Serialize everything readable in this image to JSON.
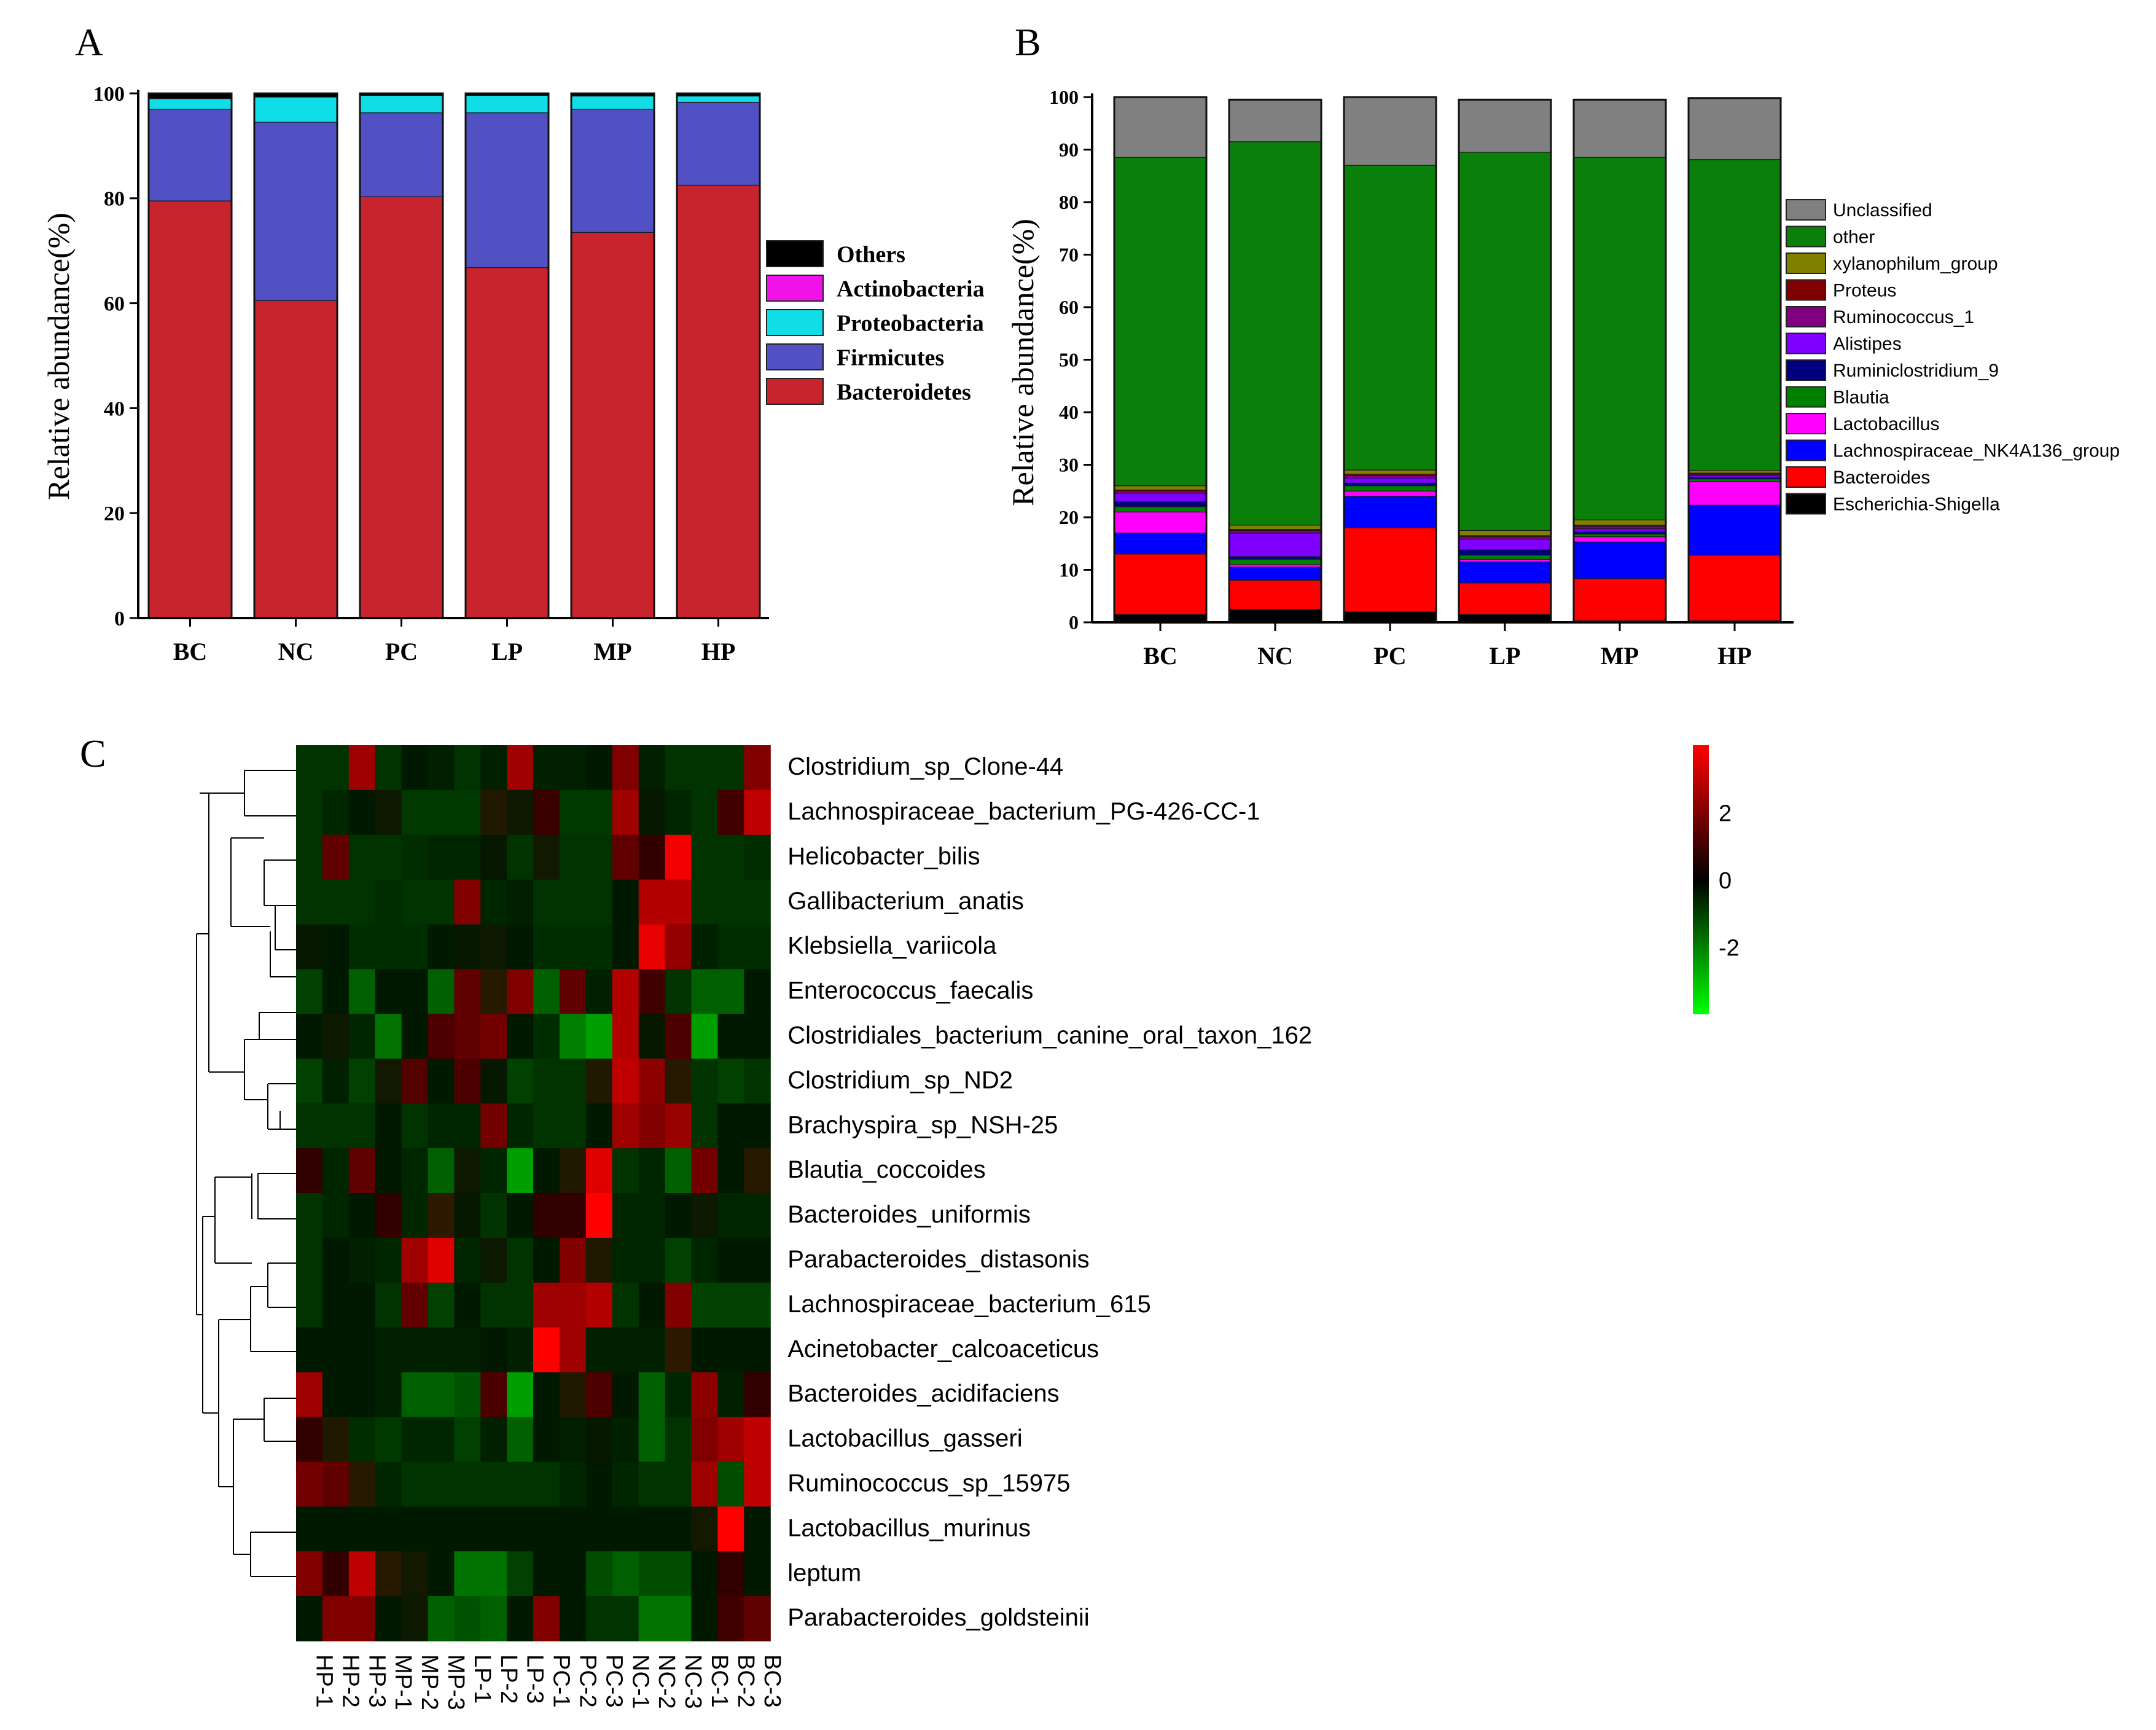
{
  "panels": {
    "a": "A",
    "b": "B",
    "c": "C"
  },
  "chart_data": [
    {
      "panel": "A",
      "type": "bar",
      "stacked": true,
      "title": "",
      "xlabel": "",
      "ylabel": "Relative abundance(%)",
      "ylim": [
        0,
        100
      ],
      "yticks": [
        "0",
        "20",
        "40",
        "60",
        "80",
        "100"
      ],
      "categories": [
        "BC",
        "NC",
        "PC",
        "LP",
        "MP",
        "HP"
      ],
      "legend_position": "right",
      "series": [
        {
          "name": "Bacteroidetes",
          "color": "#c8242d",
          "values": [
            79.5,
            60.5,
            80.3,
            66.8,
            73.5,
            82.5
          ]
        },
        {
          "name": "Firmicutes",
          "color": "#5151c4",
          "values": [
            17.5,
            34.0,
            16.0,
            29.5,
            23.5,
            15.8
          ]
        },
        {
          "name": "Proteobacteria",
          "color": "#10dde6",
          "values": [
            2.0,
            4.8,
            3.3,
            3.3,
            2.5,
            1.2
          ]
        },
        {
          "name": "Actinobacteria",
          "color": "#f012e6",
          "values": [
            0.0,
            0.0,
            0.0,
            0.0,
            0.0,
            0.0
          ]
        },
        {
          "name": "Others",
          "color": "#000000",
          "values": [
            1.0,
            0.7,
            0.4,
            0.4,
            0.5,
            0.5
          ]
        }
      ],
      "legend_order": [
        "Others",
        "Actinobacteria",
        "Proteobacteria",
        "Firmicutes",
        "Bacteroidetes"
      ]
    },
    {
      "panel": "B",
      "type": "bar",
      "stacked": true,
      "title": "",
      "xlabel": "",
      "ylabel": "Relative abundance(%)",
      "ylim": [
        0,
        100
      ],
      "yticks": [
        "0",
        "10",
        "20",
        "30",
        "40",
        "50",
        "60",
        "70",
        "80",
        "90",
        "100"
      ],
      "categories": [
        "BC",
        "NC",
        "PC",
        "LP",
        "MP",
        "HP"
      ],
      "legend_position": "right",
      "series": [
        {
          "name": "Escherichia-Shigella",
          "color": "#000000",
          "values": [
            1.5,
            2.5,
            2.0,
            1.5,
            0.3,
            0.3
          ]
        },
        {
          "name": "Bacteroides",
          "color": "#ff0000",
          "values": [
            11.5,
            5.5,
            16.0,
            6.0,
            8.0,
            12.5
          ]
        },
        {
          "name": "Lachnospiraceae_NK4A136_group",
          "color": "#0000ff",
          "values": [
            4.0,
            2.5,
            6.0,
            4.0,
            7.0,
            9.5
          ]
        },
        {
          "name": "Lactobacillus",
          "color": "#ff00ff",
          "values": [
            4.0,
            0.5,
            1.0,
            0.5,
            1.0,
            4.5
          ]
        },
        {
          "name": "Blautia",
          "color": "#008000",
          "values": [
            1.0,
            1.0,
            1.0,
            0.8,
            0.5,
            0.5
          ]
        },
        {
          "name": "Ruminiclostridium_9",
          "color": "#000080",
          "values": [
            1.0,
            0.5,
            0.5,
            1.0,
            0.5,
            0.3
          ]
        },
        {
          "name": "Alistipes",
          "color": "#8000ff",
          "values": [
            1.5,
            4.5,
            1.0,
            2.0,
            0.5,
            0.3
          ]
        },
        {
          "name": "Ruminococcus_1",
          "color": "#800080",
          "values": [
            0.5,
            0.5,
            0.5,
            0.5,
            0.5,
            0.3
          ]
        },
        {
          "name": "Proteus",
          "color": "#800000",
          "values": [
            0.2,
            0.2,
            0.2,
            0.2,
            0.2,
            0.2
          ]
        },
        {
          "name": "xylanophilum_group",
          "color": "#808000",
          "values": [
            0.8,
            0.8,
            0.8,
            1.0,
            1.0,
            0.5
          ]
        },
        {
          "name": "other",
          "color": "#0a800a",
          "values": [
            62.5,
            73.0,
            58.0,
            72.0,
            69.0,
            59.2
          ]
        },
        {
          "name": "Unclassified",
          "color": "#808080",
          "values": [
            11.5,
            8.0,
            13.0,
            10.0,
            11.0,
            11.7
          ]
        }
      ],
      "legend_order": [
        "Unclassified",
        "other",
        "xylanophilum_group",
        "Proteus",
        "Ruminococcus_1",
        "Alistipes",
        "Ruminiclostridium_9",
        "Blautia",
        "Lactobacillus",
        "Lachnospiraceae_NK4A136_group",
        "Bacteroides",
        "Escherichia-Shigella"
      ]
    },
    {
      "panel": "C",
      "type": "heatmap",
      "title": "",
      "color_scale": {
        "low": "#00ff00",
        "mid": "#000000",
        "high": "#ff0000",
        "min": -4,
        "max": 4,
        "ticks": [
          "2",
          "0",
          "-2"
        ],
        "tick_values": [
          2,
          0,
          -2
        ]
      },
      "columns": [
        "HP-1",
        "HP-2",
        "HP-3",
        "MP-1",
        "MP-2",
        "MP-3",
        "LP-1",
        "LP-2",
        "LP-3",
        "PC-1",
        "PC-2",
        "PC-3",
        "NC-1",
        "NC-2",
        "NC-3",
        "BC-1",
        "BC-2",
        "BC-3"
      ],
      "rows": [
        "Clostridium_sp_Clone-44",
        "Lachnospiraceae_bacterium_PG-426-CC-1",
        "Helicobacter_bilis",
        "Gallibacterium_anatis",
        "Klebsiella_variicola",
        "Enterococcus_faecalis",
        "Clostridiales_bacterium_canine_oral_taxon_162",
        "Clostridium_sp_ND2",
        "Brachyspira_sp_NSH-25",
        "Blautia_coccoides",
        "Bacteroides_uniformis",
        "Parabacteroides_distasonis",
        "Lachnospiraceae_bacterium_615",
        "Acinetobacter_calcoaceticus",
        "Bacteroides_acidifaciens",
        "Lactobacillus_gasseri",
        "Ruminococcus_sp_15975",
        "Lactobacillus_murinus",
        "leptum",
        "Parabacteroides_goldsteinii"
      ],
      "values": [
        [
          -0.8,
          -0.8,
          2.5,
          -0.8,
          -0.3,
          -0.5,
          -0.8,
          -0.5,
          2.5,
          -0.5,
          -0.5,
          0.0,
          2.0,
          -0.5,
          -0.8,
          -0.8,
          -0.8,
          2.0
        ],
        [
          -0.8,
          -0.6,
          -0.3,
          0.2,
          -0.9,
          -0.9,
          -0.9,
          0.5,
          0.2,
          0.9,
          -0.9,
          -0.9,
          2.5,
          0.1,
          -0.6,
          -0.8,
          1.0,
          3.0
        ],
        [
          -0.8,
          1.5,
          -0.8,
          -0.8,
          -0.7,
          -0.6,
          -0.6,
          0.1,
          -0.8,
          0.3,
          -0.8,
          -0.8,
          1.5,
          0.8,
          3.8,
          -0.8,
          -0.8,
          -0.7
        ],
        [
          -0.8,
          -0.8,
          -0.8,
          -0.7,
          -0.8,
          -0.8,
          2.0,
          -0.6,
          -0.5,
          -0.8,
          -0.8,
          -0.8,
          0.0,
          2.8,
          2.8,
          -0.8,
          -0.8,
          -0.8
        ],
        [
          0.1,
          0.0,
          -0.7,
          -0.7,
          -0.7,
          -0.3,
          0.1,
          0.2,
          -0.3,
          -0.7,
          -0.7,
          -0.7,
          0.0,
          3.6,
          2.3,
          -0.5,
          -0.7,
          -0.7
        ],
        [
          -1.0,
          -0.4,
          -1.5,
          -0.3,
          0.0,
          -1.5,
          1.5,
          0.6,
          2.0,
          -1.5,
          1.5,
          -0.5,
          2.8,
          1.0,
          -0.8,
          -1.5,
          -1.5,
          0.0
        ],
        [
          -0.3,
          0.2,
          -0.6,
          -1.8,
          0.0,
          1.2,
          1.5,
          1.8,
          -0.4,
          -0.7,
          -2.0,
          -2.5,
          2.8,
          0.1,
          1.2,
          -2.5,
          -0.2,
          -0.4
        ],
        [
          -1.0,
          -0.5,
          -1.0,
          0.3,
          1.3,
          -0.4,
          1.2,
          0.1,
          -1.0,
          -0.8,
          -0.8,
          0.5,
          3.0,
          2.2,
          0.6,
          -0.8,
          -1.0,
          -0.8
        ],
        [
          -0.8,
          -0.8,
          -0.8,
          -0.2,
          -0.8,
          -0.6,
          -0.6,
          1.8,
          -0.6,
          -0.8,
          -0.8,
          -0.4,
          2.5,
          2.0,
          2.4,
          -0.8,
          -0.2,
          0.0
        ],
        [
          0.8,
          -0.6,
          1.5,
          -0.2,
          -0.6,
          -1.5,
          0.2,
          -0.6,
          -2.5,
          -0.2,
          0.5,
          3.5,
          -0.8,
          -0.6,
          -1.5,
          1.8,
          -0.2,
          0.6
        ],
        [
          -0.8,
          -0.6,
          -0.2,
          0.8,
          -0.6,
          0.7,
          0.1,
          -0.8,
          -0.2,
          0.8,
          0.8,
          4.0,
          -0.6,
          -0.6,
          0.0,
          0.2,
          -0.6,
          -0.6
        ],
        [
          -0.8,
          -0.2,
          -0.5,
          -0.6,
          2.5,
          3.5,
          -0.6,
          0.2,
          -0.8,
          -0.4,
          2.0,
          0.5,
          -0.6,
          -0.6,
          -1.0,
          -0.6,
          -0.3,
          -0.3
        ],
        [
          -0.8,
          0.0,
          -0.3,
          -0.8,
          1.5,
          -1.0,
          -0.4,
          -0.8,
          -0.8,
          2.5,
          2.5,
          2.8,
          -0.8,
          0.0,
          2.0,
          -1.0,
          -1.0,
          -1.0
        ],
        [
          -0.4,
          -0.4,
          -0.2,
          -0.5,
          -0.5,
          -0.5,
          -0.5,
          -0.3,
          -0.5,
          4.0,
          2.5,
          -0.5,
          -0.5,
          -0.5,
          0.7,
          -0.4,
          -0.4,
          -0.2
        ],
        [
          2.5,
          -0.2,
          0.0,
          -0.5,
          -1.5,
          -1.5,
          -1.3,
          1.2,
          -2.5,
          -0.2,
          0.5,
          1.2,
          0.0,
          -1.5,
          -0.6,
          2.2,
          -0.5,
          0.8
        ],
        [
          0.8,
          0.5,
          -0.7,
          -0.9,
          -0.6,
          -0.6,
          -1.0,
          -0.5,
          -1.5,
          0.0,
          -0.5,
          0.1,
          -0.5,
          -1.5,
          -0.8,
          2.0,
          2.5,
          3.0
        ],
        [
          1.8,
          1.5,
          0.6,
          -0.6,
          -0.8,
          -0.8,
          -0.8,
          -0.8,
          -0.8,
          -0.8,
          -0.6,
          -0.4,
          -0.6,
          -0.8,
          -0.8,
          2.5,
          -1.2,
          3.0
        ],
        [
          -0.4,
          -0.3,
          -0.4,
          -0.4,
          -0.3,
          -0.3,
          -0.2,
          -0.4,
          -0.4,
          -0.4,
          -0.3,
          -0.3,
          -0.4,
          0.0,
          -0.2,
          0.3,
          4.0,
          -0.2
        ],
        [
          2.0,
          0.8,
          3.0,
          0.6,
          0.3,
          0.0,
          -1.8,
          -1.8,
          -1.0,
          -0.2,
          0.0,
          -1.2,
          -1.5,
          -1.2,
          -1.2,
          0.0,
          0.8,
          0.0
        ],
        [
          0.0,
          2.0,
          2.0,
          0.0,
          0.2,
          -1.5,
          -1.3,
          -1.5,
          -0.3,
          2.0,
          -0.3,
          -0.8,
          -0.8,
          -1.8,
          -1.8,
          0.0,
          1.0,
          1.5
        ]
      ]
    }
  ]
}
